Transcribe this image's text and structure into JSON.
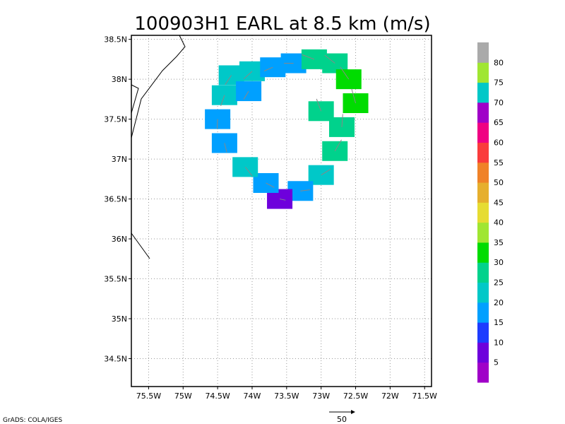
{
  "chart_data": {
    "type": "heatmap",
    "title": "100903H1 EARL at 8.5 km (m/s)",
    "x_tick_labels": [
      "75.5W",
      "75W",
      "74.5W",
      "74W",
      "73.5W",
      "73W",
      "72.5W",
      "72W",
      "71.5W"
    ],
    "x_tick_values": [
      -75.5,
      -75,
      -74.5,
      -74,
      -73.5,
      -73,
      -72.5,
      -72,
      -71.5
    ],
    "y_tick_labels": [
      "34.5N",
      "35N",
      "35.5N",
      "36N",
      "36.5N",
      "37N",
      "37.5N",
      "38N",
      "38.5N"
    ],
    "y_tick_values": [
      34.5,
      35,
      35.5,
      36,
      36.5,
      37,
      37.5,
      38,
      38.5
    ],
    "xlim": [
      -75.75,
      -71.4
    ],
    "ylim": [
      34.15,
      38.55
    ],
    "grid": true,
    "colorbar": {
      "labels": [
        "5",
        "10",
        "15",
        "20",
        "25",
        "30",
        "35",
        "40",
        "45",
        "50",
        "55",
        "60",
        "65",
        "70",
        "75",
        "80"
      ],
      "colors": [
        "#a000c8",
        "#6e00dc",
        "#1e3cff",
        "#00a0ff",
        "#00c8c8",
        "#00d28c",
        "#00dc00",
        "#a0e632",
        "#e6dc32",
        "#e6af2d",
        "#f08228",
        "#fa3c3c",
        "#f00082",
        "#a000c8",
        "#00c8c8",
        "#a0e632",
        "#aaaaaa"
      ]
    },
    "wind_field": [
      {
        "lon": -74.3,
        "lat": 38.05,
        "speed": 20
      },
      {
        "lon": -74.0,
        "lat": 38.1,
        "speed": 20
      },
      {
        "lon": -73.7,
        "lat": 38.15,
        "speed": 15
      },
      {
        "lon": -73.4,
        "lat": 38.2,
        "speed": 15
      },
      {
        "lon": -73.1,
        "lat": 38.25,
        "speed": 25
      },
      {
        "lon": -72.8,
        "lat": 38.2,
        "speed": 25
      },
      {
        "lon": -72.6,
        "lat": 38.0,
        "speed": 30
      },
      {
        "lon": -72.5,
        "lat": 37.7,
        "speed": 30
      },
      {
        "lon": -72.7,
        "lat": 37.4,
        "speed": 25
      },
      {
        "lon": -72.8,
        "lat": 37.1,
        "speed": 25
      },
      {
        "lon": -73.0,
        "lat": 36.8,
        "speed": 20
      },
      {
        "lon": -73.3,
        "lat": 36.6,
        "speed": 15
      },
      {
        "lon": -73.6,
        "lat": 36.5,
        "speed": 5
      },
      {
        "lon": -73.8,
        "lat": 36.7,
        "speed": 15
      },
      {
        "lon": -74.1,
        "lat": 36.9,
        "speed": 20
      },
      {
        "lon": -74.4,
        "lat": 37.2,
        "speed": 15
      },
      {
        "lon": -74.5,
        "lat": 37.5,
        "speed": 15
      },
      {
        "lon": -74.4,
        "lat": 37.8,
        "speed": 20
      },
      {
        "lon": -74.05,
        "lat": 37.85,
        "speed": 15
      },
      {
        "lon": -73.0,
        "lat": 37.6,
        "speed": 25
      }
    ],
    "reference_vector": "50"
  },
  "footer": {
    "credit": "GrADS: COLA/IGES"
  }
}
